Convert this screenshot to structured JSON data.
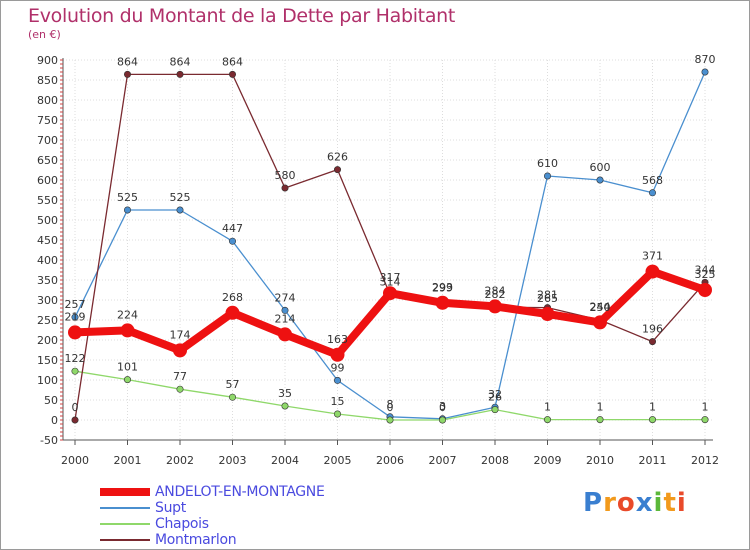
{
  "header": {
    "title": "Evolution du Montant de la Dette par Habitant",
    "subtitle": "(en €)"
  },
  "logo": {
    "text": "Proxiti"
  },
  "chart_data": {
    "type": "line",
    "title": "Evolution du Montant de la Dette par Habitant",
    "subtitle": "(en €)",
    "ylim": [
      -50,
      900
    ],
    "yticks": [
      -50,
      0,
      50,
      100,
      150,
      200,
      250,
      300,
      350,
      400,
      450,
      500,
      550,
      600,
      650,
      700,
      750,
      800,
      850,
      900
    ],
    "categories": [
      "2000",
      "2001",
      "2002",
      "2003",
      "2004",
      "2005",
      "2006",
      "2007",
      "2008",
      "2009",
      "2010",
      "2011",
      "2012"
    ],
    "grid": true,
    "legend_position": "bottom-left",
    "series": [
      {
        "name": "Supt",
        "color": "#4a8fcf",
        "values": [
          257,
          525,
          525,
          447,
          274,
          99,
          8,
          3,
          32,
          610,
          600,
          568,
          870
        ]
      },
      {
        "name": "Chapois",
        "color": "#8fd86a",
        "values": [
          122,
          101,
          77,
          57,
          35,
          15,
          0,
          0,
          26,
          1,
          1,
          1,
          1
        ]
      },
      {
        "name": "Montmarlon",
        "color": "#7a2a30",
        "values": [
          0,
          864,
          864,
          864,
          580,
          626,
          314,
          299,
          282,
          281,
          250,
          196,
          344
        ]
      },
      {
        "name": "ANDELOT-EN-MONTAGNE",
        "color": "#ee1111",
        "values": [
          219,
          224,
          174,
          268,
          214,
          163,
          317,
          293,
          284,
          265,
          244,
          371,
          325
        ]
      }
    ],
    "legend_order": [
      "ANDELOT-EN-MONTAGNE",
      "Supt",
      "Chapois",
      "Montmarlon"
    ]
  }
}
